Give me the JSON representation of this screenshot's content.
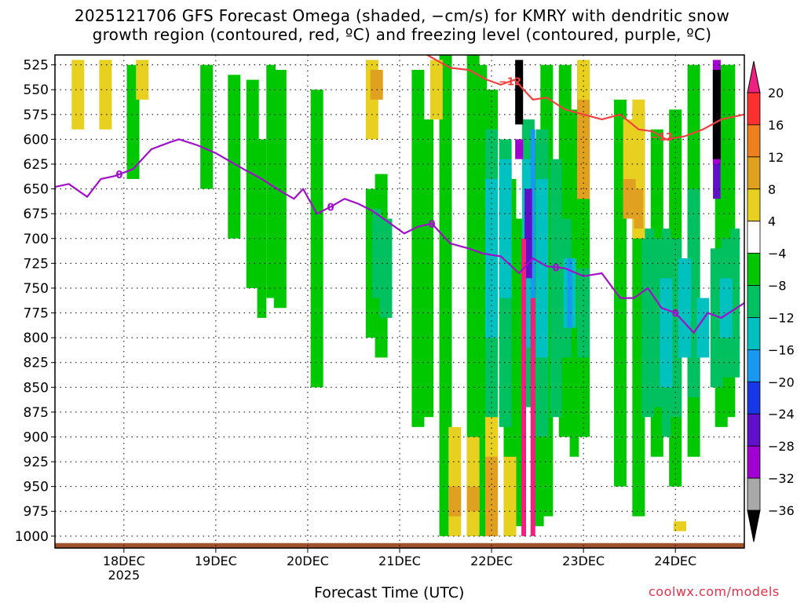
{
  "title_line1": "2025121706 GFS Forecast Omega (shaded, −cm/s) for KMRY with dendritic snow",
  "title_line2": "growth region (contoured, red, ºC) and freezing level (contoured, purple, ºC)",
  "xlabel": "Forecast Time (UTC)",
  "credit": "coolwx.com/models",
  "chart_data": {
    "type": "heatmap",
    "y_axis": {
      "label": "",
      "ticks": [
        525,
        550,
        575,
        600,
        625,
        650,
        675,
        700,
        725,
        750,
        775,
        800,
        825,
        850,
        875,
        900,
        925,
        950,
        975,
        1000
      ],
      "range": [
        1012,
        515
      ],
      "units": "hPa"
    },
    "x_axis": {
      "label": "Forecast Time (UTC)",
      "ticks": [
        "18DEC",
        "19DEC",
        "20DEC",
        "21DEC",
        "22DEC",
        "23DEC",
        "24DEC"
      ],
      "sub_label": "2025",
      "range_days": [
        17.25,
        24.75
      ]
    },
    "grid": true,
    "colorbar": {
      "labels": [
        "20",
        "16",
        "12",
        "8",
        "4",
        "−4",
        "−8",
        "−12",
        "−16",
        "−20",
        "−24",
        "−28",
        "−32",
        "−36"
      ],
      "bins": [
        {
          "color": "#ff3030"
        },
        {
          "color": "#ee8020"
        },
        {
          "color": "#e0a020"
        },
        {
          "color": "#e8d020"
        },
        {
          "color": "#ffffff"
        },
        {
          "color": "#00c800"
        },
        {
          "color": "#00c060"
        },
        {
          "color": "#00c0c0"
        },
        {
          "color": "#1898f0"
        },
        {
          "color": "#1838e8"
        },
        {
          "color": "#6010c8"
        },
        {
          "color": "#a000d0"
        },
        {
          "color": "#a8a8a8"
        }
      ],
      "top_arrow": "#f02080",
      "bottom_arrow": "#000000"
    },
    "shaded_regions": [
      {
        "x": [
          18.1,
          18.9,
          19.2,
          19.4,
          19.5,
          19.6,
          19.7,
          20.1,
          20.7,
          20.8,
          21.2,
          21.3,
          21.5,
          21.8,
          21.9,
          22.0,
          22.2,
          22.3,
          22.5,
          22.6,
          22.8,
          22.9,
          23.0,
          23.4,
          23.6,
          23.8,
          24.0,
          24.2,
          24.5,
          24.6
        ],
        "p_top": [
          525,
          525,
          535,
          540,
          600,
          525,
          530,
          550,
          650,
          635,
          530,
          580,
          500,
          500,
          525,
          550,
          640,
          680,
          600,
          525,
          525,
          570,
          525,
          560,
          570,
          590,
          570,
          525,
          525,
          525
        ],
        "p_bot": [
          640,
          650,
          700,
          750,
          780,
          760,
          770,
          850,
          800,
          820,
          890,
          880,
          1000,
          1000,
          1000,
          1000,
          1000,
          990,
          990,
          980,
          900,
          920,
          900,
          950,
          980,
          920,
          950,
          920,
          890,
          880
        ],
        "value": -6
      },
      {
        "x": [
          20.75,
          20.85,
          22.0,
          22.15,
          22.4,
          22.55,
          22.7,
          22.8,
          23.0,
          23.7,
          23.8,
          23.9,
          24.0,
          24.2,
          24.45,
          24.55,
          24.65
        ],
        "p_top": [
          670,
          680,
          590,
          600,
          580,
          590,
          620,
          680,
          730,
          690,
          700,
          690,
          700,
          650,
          710,
          700,
          690
        ],
        "p_bot": [
          760,
          780,
          880,
          890,
          870,
          900,
          880,
          820,
          820,
          880,
          870,
          900,
          880,
          860,
          850,
          840,
          840
        ],
        "value": -10
      },
      {
        "x": [
          22.0,
          22.15,
          22.4,
          22.55,
          22.85,
          23.9,
          24.1,
          24.3,
          24.55
        ],
        "p_top": [
          640,
          620,
          620,
          640,
          720,
          740,
          720,
          760,
          740
        ],
        "p_bot": [
          800,
          760,
          810,
          820,
          790,
          850,
          820,
          820,
          800
        ],
        "value": -14
      },
      {
        "x": [
          22.45,
          22.85
        ],
        "p_top": [
          590,
          720
        ],
        "p_bot": [
          760,
          790
        ],
        "value": -18
      },
      {
        "x": [
          22.4,
          24.45
        ],
        "p_top": [
          650,
          560
        ],
        "p_bot": [
          740,
          660
        ],
        "value": -26
      },
      {
        "x": [
          22.3,
          24.45
        ],
        "p_top": [
          600,
          520
        ],
        "p_bot": [
          620,
          625
        ],
        "value": -30
      },
      {
        "x": [
          22.3,
          24.45
        ],
        "p_top": [
          520,
          530
        ],
        "p_bot": [
          585,
          620
        ],
        "value": -40
      },
      {
        "x": [
          17.5,
          17.8,
          18.2,
          20.7,
          21.4,
          21.6,
          21.8,
          22.0,
          22.2,
          23.0,
          23.2,
          23.5,
          23.6,
          24.05
        ],
        "p_top": [
          520,
          520,
          520,
          520,
          520,
          890,
          900,
          880,
          920,
          520,
          560,
          580,
          560,
          985
        ],
        "p_bot": [
          590,
          590,
          560,
          600,
          580,
          1000,
          1000,
          1000,
          1000,
          660,
          560,
          680,
          700,
          995
        ],
        "value": 6
      },
      {
        "x": [
          20.75,
          21.6,
          21.8,
          22.0,
          23.0,
          23.5,
          23.6
        ],
        "p_top": [
          530,
          950,
          950,
          920,
          560,
          640,
          650
        ],
        "p_bot": [
          560,
          980,
          975,
          1000,
          660,
          680,
          690
        ],
        "value": 10
      },
      {
        "x": [
          22.35,
          22.45
        ],
        "p_top": [
          700,
          760
        ],
        "p_bot": [
          1000,
          1000
        ],
        "value": 20
      }
    ],
    "series": [
      {
        "name": "",
        "label": "0",
        "color": "#a010c8",
        "x": [
          17.25,
          17.4,
          17.6,
          17.75,
          17.9,
          18.1,
          18.3,
          18.5,
          18.6,
          18.8,
          19.0,
          19.3,
          19.5,
          19.7,
          19.85,
          19.95,
          20.1,
          20.25,
          20.4,
          20.55,
          20.7,
          20.9,
          21.05,
          21.2,
          21.35,
          21.55,
          21.75,
          21.9,
          22.1,
          22.3,
          22.45,
          22.6,
          22.8,
          23.0,
          23.2,
          23.4,
          23.55,
          23.7,
          23.85,
          24.0,
          24.2,
          24.35,
          24.5,
          24.75
        ],
        "p": [
          648,
          645,
          658,
          640,
          637,
          630,
          610,
          603,
          600,
          606,
          614,
          630,
          640,
          652,
          660,
          650,
          675,
          668,
          660,
          665,
          672,
          685,
          695,
          688,
          685,
          705,
          710,
          715,
          718,
          735,
          720,
          728,
          730,
          738,
          735,
          760,
          760,
          750,
          770,
          775,
          795,
          775,
          780,
          765
        ]
      },
      {
        "name": "",
        "label": "-12",
        "color": "#f04040",
        "x": [
          21.3,
          21.55,
          21.75,
          21.95,
          22.1,
          22.25,
          22.45,
          22.6,
          22.8,
          23.0,
          23.2,
          23.4,
          23.6,
          23.75,
          23.9,
          24.1,
          24.3,
          24.5,
          24.75
        ],
        "p": [
          515,
          528,
          530,
          540,
          545,
          540,
          560,
          558,
          570,
          575,
          580,
          575,
          590,
          592,
          600,
          597,
          590,
          580,
          575
        ]
      }
    ],
    "contour_labels": [
      {
        "series": "0",
        "x": [
          17.95,
          20.25,
          21.35,
          22.7,
          24.0
        ],
        "text": "0"
      },
      {
        "series": "-12",
        "x": [
          22.2,
          23.85
        ],
        "text": "−12"
      }
    ]
  }
}
